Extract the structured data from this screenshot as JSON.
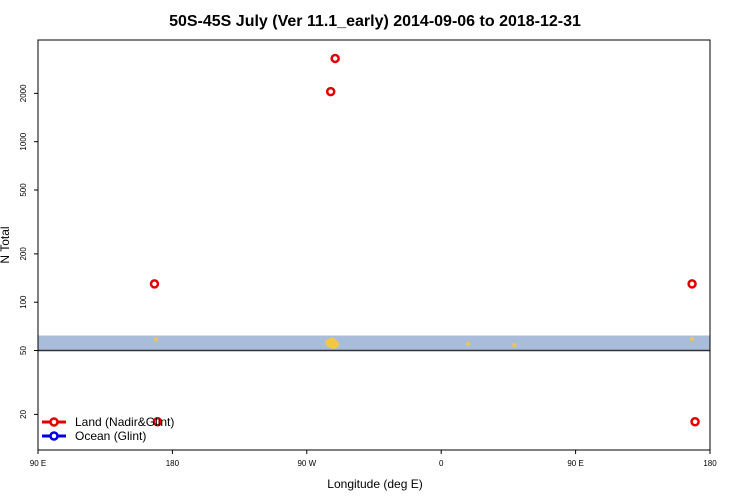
{
  "chart_data": {
    "type": "scatter",
    "title": "50S-45S July (Ver 11.1_early)   2014-09-06 to 2018-12-31",
    "xlabel": "Longitude (deg E)",
    "ylabel": "N Total",
    "x_ticks": [
      {
        "value": 90,
        "label": "90 E"
      },
      {
        "value": 180,
        "label": "180"
      },
      {
        "value": 270,
        "label": "90 W"
      },
      {
        "value": 360,
        "label": "0"
      },
      {
        "value": 450,
        "label": "90 E"
      },
      {
        "value": 540,
        "label": "180"
      }
    ],
    "y_ticks": [
      20,
      50,
      100,
      200,
      500,
      1000,
      2000
    ],
    "xlim": [
      90,
      540
    ],
    "ylim": [
      12,
      4300
    ],
    "y_scale": "log",
    "grid": false,
    "legend_position": "bottom-left",
    "reference_line": 50,
    "ocean_band": [
      50,
      62
    ],
    "series": [
      {
        "name": "Land (Nadir&Glint)",
        "color": "#e00000",
        "x": [
          168,
          286,
          289,
          528,
          170,
          530
        ],
        "y": [
          130,
          2050,
          3300,
          130,
          18,
          18
        ]
      },
      {
        "name": "Ocean (Glint)",
        "color": "#0000e0",
        "x": [],
        "y": []
      }
    ],
    "yellow_points": {
      "color": "#f5c842",
      "x": [
        169,
        286,
        287,
        288,
        285,
        289,
        286,
        378,
        409,
        528
      ],
      "y": [
        59,
        55,
        57,
        54,
        56,
        55,
        56,
        55,
        54,
        59
      ]
    }
  }
}
